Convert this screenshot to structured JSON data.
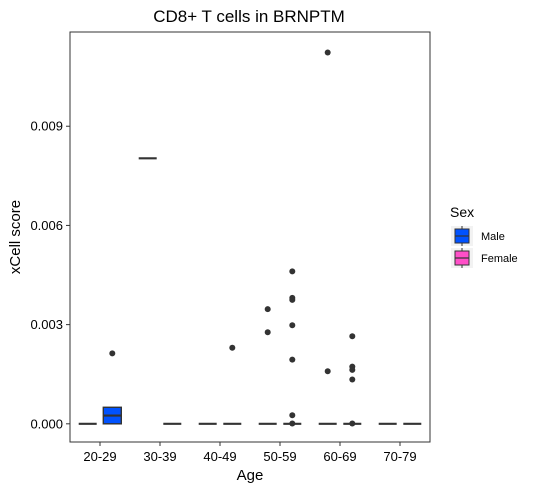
{
  "chart_data": {
    "type": "box",
    "title": "CD8+ T cells in BRNPTM",
    "xlabel": "Age",
    "ylabel": "xCell score",
    "categories": [
      "20-29",
      "30-39",
      "40-49",
      "50-59",
      "60-69",
      "70-79"
    ],
    "y_ticks": [
      0.0,
      0.003,
      0.006,
      0.009
    ],
    "y_tick_labels": [
      "0.000",
      "0.003",
      "0.006",
      "0.009"
    ],
    "ylim": [
      -0.00055,
      0.01185
    ],
    "grid": false,
    "legend": {
      "title": "Sex",
      "placement": "right",
      "entries": [
        {
          "label": "Male",
          "color": "#0052FF"
        },
        {
          "label": "Female",
          "color": "#FF4FC8"
        }
      ]
    },
    "groups": [
      {
        "category": "20-29",
        "series": "Female",
        "q1": 0.0,
        "median": 0.0,
        "q3": 0.0,
        "outliers": []
      },
      {
        "category": "20-29",
        "series": "Male",
        "q1": 0.0,
        "median": 0.00025,
        "q3": 0.0005,
        "outliers": [
          0.00213
        ]
      },
      {
        "category": "30-39",
        "series": "Female",
        "q1": 0.00803,
        "median": 0.00803,
        "q3": 0.00803,
        "outliers": []
      },
      {
        "category": "30-39",
        "series": "Male",
        "q1": 0.0,
        "median": 0.0,
        "q3": 0.0,
        "outliers": []
      },
      {
        "category": "40-49",
        "series": "Female",
        "q1": 0.0,
        "median": 0.0,
        "q3": 0.0,
        "outliers": []
      },
      {
        "category": "40-49",
        "series": "Male",
        "q1": 0.0,
        "median": 0.0,
        "q3": 0.0,
        "outliers": [
          0.0023
        ]
      },
      {
        "category": "50-59",
        "series": "Female",
        "q1": 0.0,
        "median": 0.0,
        "q3": 0.0,
        "outliers": [
          0.00347,
          0.00277
        ]
      },
      {
        "category": "50-59",
        "series": "Male",
        "q1": 0.0,
        "median": 0.0,
        "q3": 0.0,
        "outliers": [
          0.00461,
          0.00381,
          0.00375,
          0.00298,
          0.00194,
          0.00026,
          1e-05
        ]
      },
      {
        "category": "60-69",
        "series": "Female",
        "q1": 0.0,
        "median": 0.0,
        "q3": 0.0,
        "outliers": [
          0.01123,
          0.00159
        ]
      },
      {
        "category": "60-69",
        "series": "Male",
        "q1": 0.0,
        "median": 0.0,
        "q3": 0.0,
        "outliers": [
          0.00265,
          0.00173,
          0.00163,
          0.00134,
          1e-05
        ]
      },
      {
        "category": "70-79",
        "series": "Female",
        "q1": 0.0,
        "median": 0.0,
        "q3": 0.0,
        "outliers": []
      },
      {
        "category": "70-79",
        "series": "Male",
        "q1": 0.0,
        "median": 0.0,
        "q3": 0.0,
        "outliers": []
      }
    ]
  }
}
